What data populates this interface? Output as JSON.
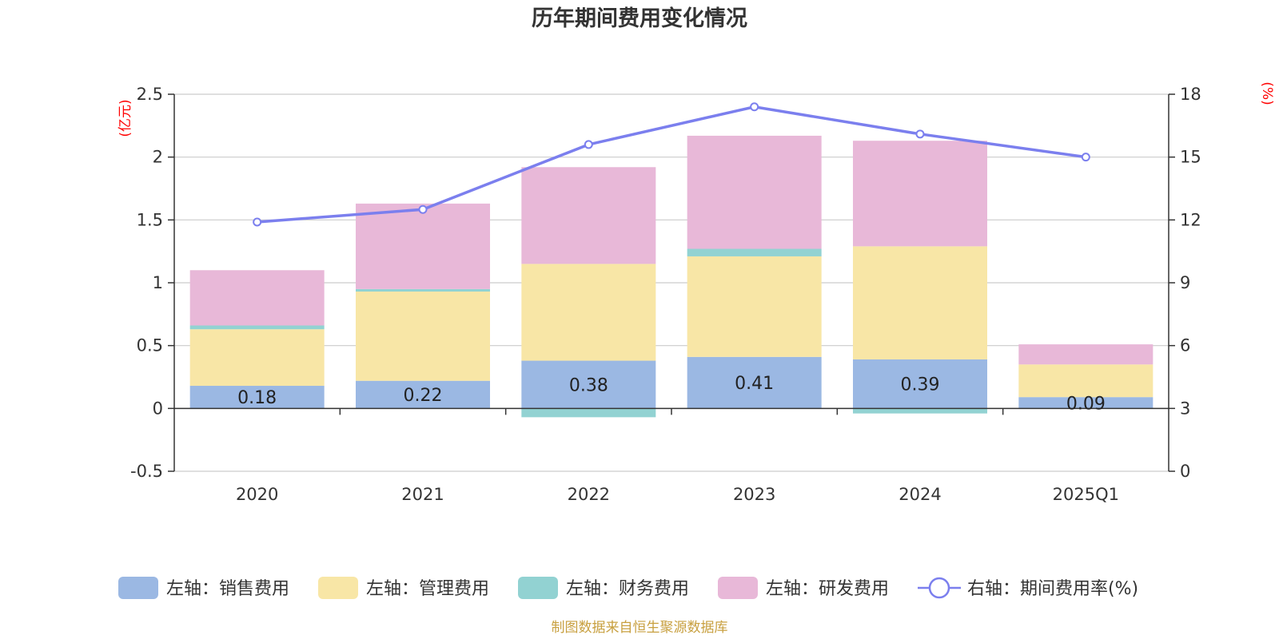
{
  "chart_data": {
    "type": "bar",
    "title": "历年期间费用变化情况",
    "left_unit": "(亿元)",
    "right_unit": "(%)",
    "categories": [
      "2020",
      "2021",
      "2022",
      "2023",
      "2024",
      "2025Q1"
    ],
    "left_axis": {
      "min": -0.5,
      "max": 2.5,
      "ticks": [
        "-0.5",
        "0",
        "0.5",
        "1",
        "1.5",
        "2",
        "2.5"
      ]
    },
    "right_axis": {
      "min": 0,
      "max": 18,
      "ticks": [
        "0",
        "3",
        "6",
        "9",
        "12",
        "15",
        "18"
      ]
    },
    "series": [
      {
        "name": "左轴：销售费用",
        "type": "bar",
        "color": "#9bb8e3",
        "values": [
          0.18,
          0.22,
          0.38,
          0.41,
          0.39,
          0.09
        ],
        "labels": [
          "0.18",
          "0.22",
          "0.38",
          "0.41",
          "0.39",
          "0.09"
        ]
      },
      {
        "name": "左轴：管理费用",
        "type": "bar",
        "color": "#f8e6a6",
        "values": [
          0.45,
          0.71,
          0.77,
          0.8,
          0.9,
          0.26
        ]
      },
      {
        "name": "左轴：财务费用",
        "type": "bar",
        "color": "#92d2d2",
        "values": [
          0.03,
          0.02,
          -0.07,
          0.06,
          -0.04,
          0.0
        ]
      },
      {
        "name": "左轴：研发费用",
        "type": "bar",
        "color": "#e8b8d8",
        "values": [
          0.44,
          0.68,
          0.77,
          0.9,
          0.84,
          0.16
        ]
      },
      {
        "name": "右轴：期间费用率(%)",
        "type": "line",
        "color": "#7b7fee",
        "values": [
          11.9,
          12.5,
          15.6,
          17.4,
          16.1,
          15.0
        ]
      }
    ],
    "grid": true,
    "legend_position": "bottom"
  },
  "source_note": "制图数据来自恒生聚源数据库"
}
